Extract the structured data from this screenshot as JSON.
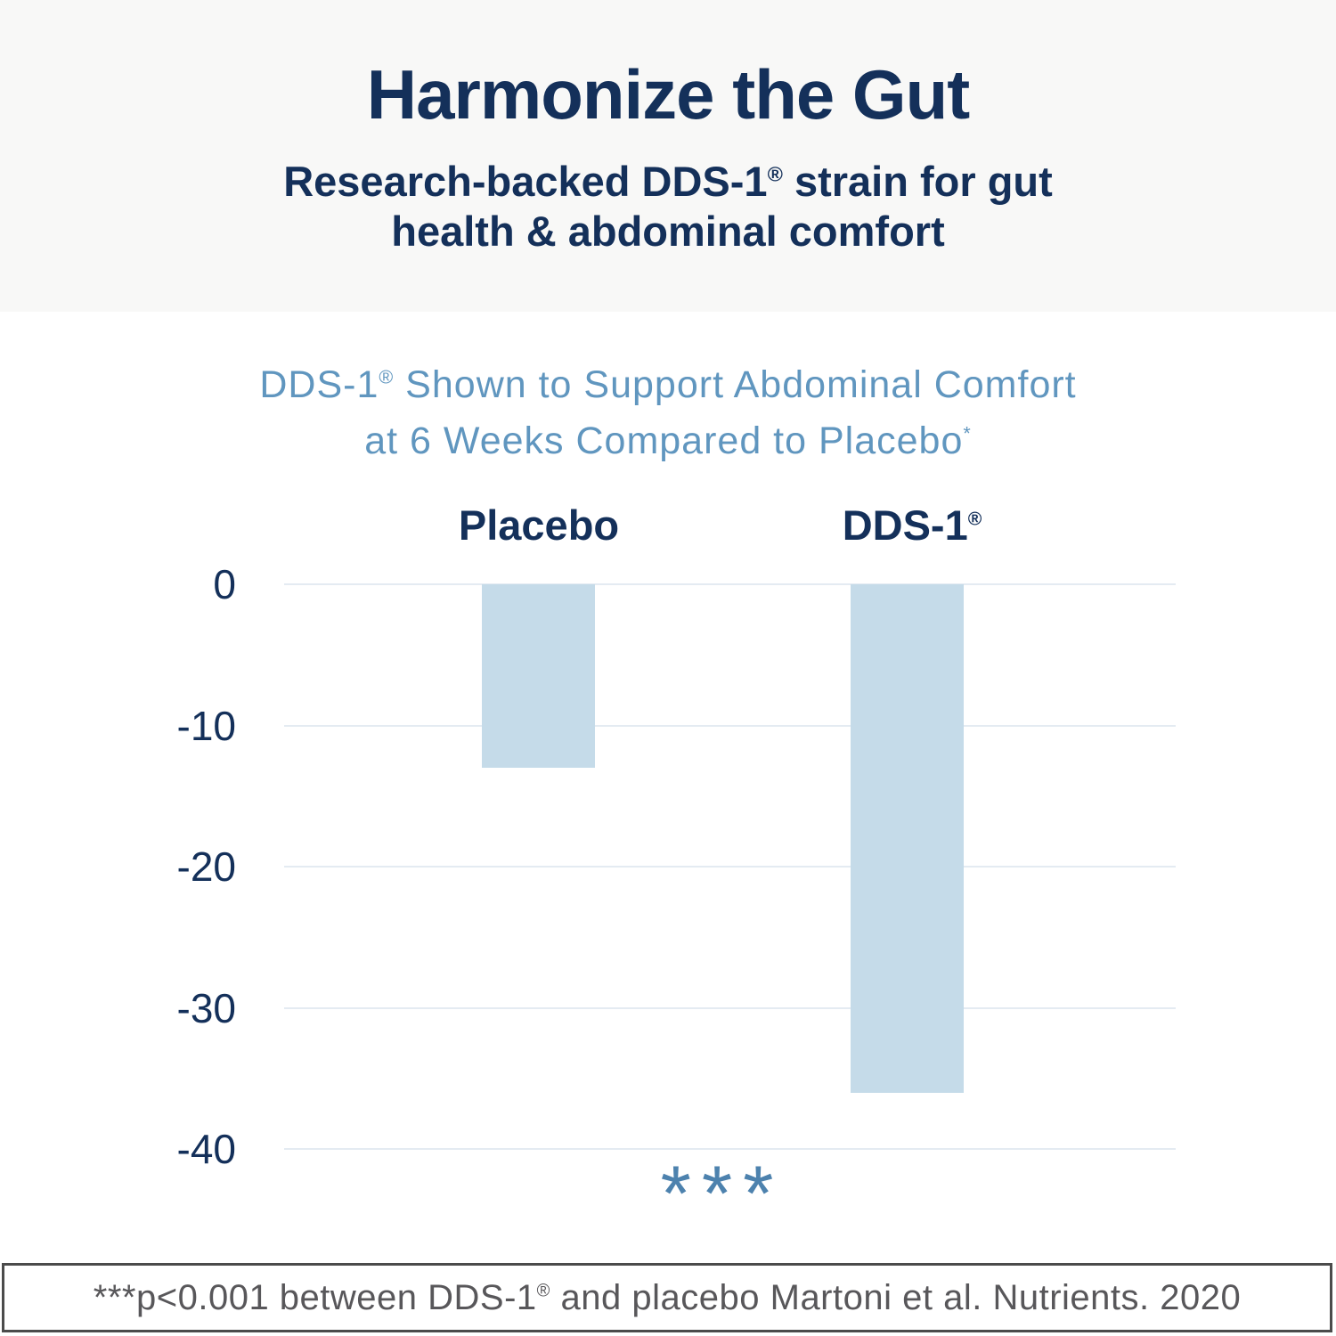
{
  "header": {
    "title": "Harmonize the Gut",
    "subtitle": {
      "line1_pre": "Research-backed DDS-1",
      "reg": "®",
      "line1_post": " strain for gut",
      "line2": "health & abdominal comfort"
    }
  },
  "chart": {
    "title": {
      "line1_pre": "DDS-1",
      "reg": "®",
      "line1_post": " Shown to Support Abdominal Comfort",
      "line2": "at 6 Weeks Compared to Placebo",
      "asterisk": "*"
    },
    "labels": {
      "placebo": "Placebo",
      "dds_pre": "DDS-1",
      "dds_reg": "®"
    },
    "significance": "***"
  },
  "footnote": {
    "pre": "***p<0.001 between DDS-1",
    "reg": "®",
    "post": " and placebo Martoni et al. Nutrients. 2020"
  },
  "colors": {
    "navy": "#14305a",
    "title_blue": "#6096bf",
    "bar_fill": "#c5dbe9",
    "gridline": "#e4ebf2",
    "asterisk_blue": "#4d82ae",
    "footnote_gray": "#58575a",
    "footnote_border": "#4b4b4b",
    "header_bg": "#f8f8f7"
  },
  "chart_data": {
    "type": "bar",
    "title": "DDS-1® Shown to Support Abdominal Comfort at 6 Weeks Compared to Placebo*",
    "categories": [
      "Placebo",
      "DDS-1®"
    ],
    "values": [
      -13,
      -36
    ],
    "xlabel": "",
    "ylabel": "",
    "ylim": [
      -40,
      0
    ],
    "yticks": [
      0,
      -10,
      -20,
      -30,
      -40
    ],
    "ytick_labels": [
      "0",
      "-10",
      "-20",
      "-30",
      "-40"
    ],
    "grid": true,
    "legend": false,
    "significance_annotation": "***",
    "bar_color": "#c5dbe9"
  }
}
